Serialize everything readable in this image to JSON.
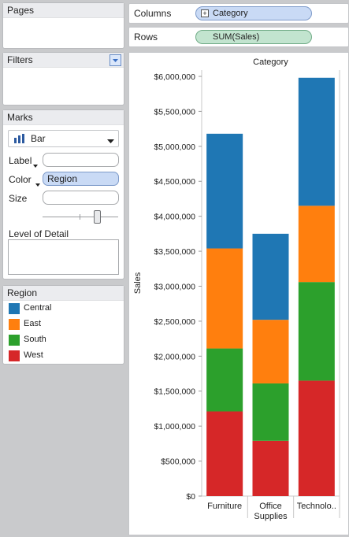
{
  "shelves": {
    "columns": {
      "label": "Columns",
      "pill": "Category",
      "pill_icon": "+"
    },
    "rows": {
      "label": "Rows",
      "pill": "SUM(Sales)"
    }
  },
  "cards": {
    "pages": {
      "title": "Pages"
    },
    "filters": {
      "title": "Filters"
    },
    "marks": {
      "title": "Marks",
      "mark_type": "Bar",
      "label_label": "Label",
      "color_label": "Color",
      "color_pill": "Region",
      "size_label": "Size",
      "lod_label": "Level of Detail"
    },
    "region": {
      "title": "Region",
      "items": [
        {
          "label": "Central",
          "color": "#1f77b4"
        },
        {
          "label": "East",
          "color": "#ff7f0e"
        },
        {
          "label": "South",
          "color": "#2ca02c"
        },
        {
          "label": "West",
          "color": "#d62728"
        }
      ]
    }
  },
  "chart_data": {
    "type": "bar",
    "stacked": true,
    "title": "Category",
    "ylabel": "Sales",
    "xlabel": "",
    "categories": [
      "Furniture",
      "Office\nSupplies",
      "Technolo.."
    ],
    "ylim": [
      0,
      6200000
    ],
    "yticks": [
      0,
      500000,
      1000000,
      1500000,
      2000000,
      2500000,
      3000000,
      3500000,
      4000000,
      4500000,
      5000000,
      5500000,
      6000000
    ],
    "ytick_labels": [
      "$0",
      "$500,000",
      "$1,000,000",
      "$1,500,000",
      "$2,000,000",
      "$2,500,000",
      "$3,000,000",
      "$3,500,000",
      "$4,000,000",
      "$4,500,000",
      "$5,000,000",
      "$5,500,000",
      "$6,000,000"
    ],
    "series": [
      {
        "name": "West",
        "color": "#d62728",
        "values": [
          1210000,
          790000,
          1650000
        ]
      },
      {
        "name": "South",
        "color": "#2ca02c",
        "values": [
          900000,
          820000,
          1410000
        ]
      },
      {
        "name": "East",
        "color": "#ff7f0e",
        "values": [
          1430000,
          910000,
          1090000
        ]
      },
      {
        "name": "Central",
        "color": "#1f77b4",
        "values": [
          1640000,
          1230000,
          1830000
        ]
      }
    ]
  }
}
